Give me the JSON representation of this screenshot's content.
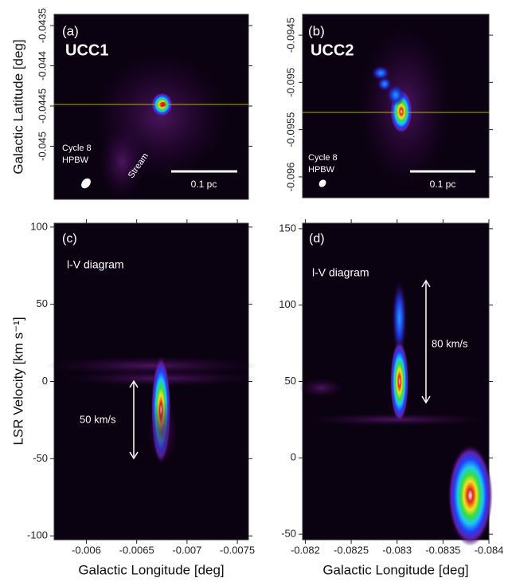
{
  "chart_data": [
    {
      "type": "image",
      "panel": "(a)",
      "title": "UCC1",
      "annotations": [
        "Cycle 8",
        "HPBW",
        "Stream",
        "0.1 pc"
      ],
      "ylabel": "Galactic Latitude  [deg]",
      "ylim": [
        -0.04566,
        -0.04336
      ],
      "yticks": [
        -0.0435,
        -0.044,
        -0.0445,
        -0.045
      ]
    },
    {
      "type": "image",
      "panel": "(b)",
      "title": "UCC2",
      "annotations": [
        "Cycle 8",
        "HPBW",
        "0.1 pc"
      ],
      "ylim": [
        -0.09622,
        -0.09428
      ],
      "yticks": [
        -0.0945,
        -0.095,
        -0.0955,
        -0.096
      ]
    },
    {
      "type": "image",
      "panel": "(c)",
      "title": "l-V diagram",
      "annotations": [
        "50 km/s"
      ],
      "xlabel": "Galactic Longitude  [deg]",
      "ylabel": "LSR Velocity  [km s⁻¹]",
      "xlim": [
        -0.00568,
        -0.00761
      ],
      "ylim": [
        -102.5,
        102.5
      ],
      "xticks": [
        -0.006,
        -0.0065,
        -0.007,
        -0.0075
      ],
      "yticks": [
        100,
        50,
        0,
        -50,
        -100
      ]
    },
    {
      "type": "image",
      "panel": "(d)",
      "title": "l-V diagram",
      "annotations": [
        "80 km/s"
      ],
      "xlabel": "Galactic Longitude  [deg]",
      "xlim": [
        -0.08197,
        -0.084
      ],
      "ylim": [
        -53.6,
        153.6
      ],
      "xticks": [
        -0.082,
        -0.0825,
        -0.083,
        -0.0835,
        -0.084
      ],
      "yticks": [
        150,
        100,
        50,
        0,
        -50
      ]
    }
  ]
}
